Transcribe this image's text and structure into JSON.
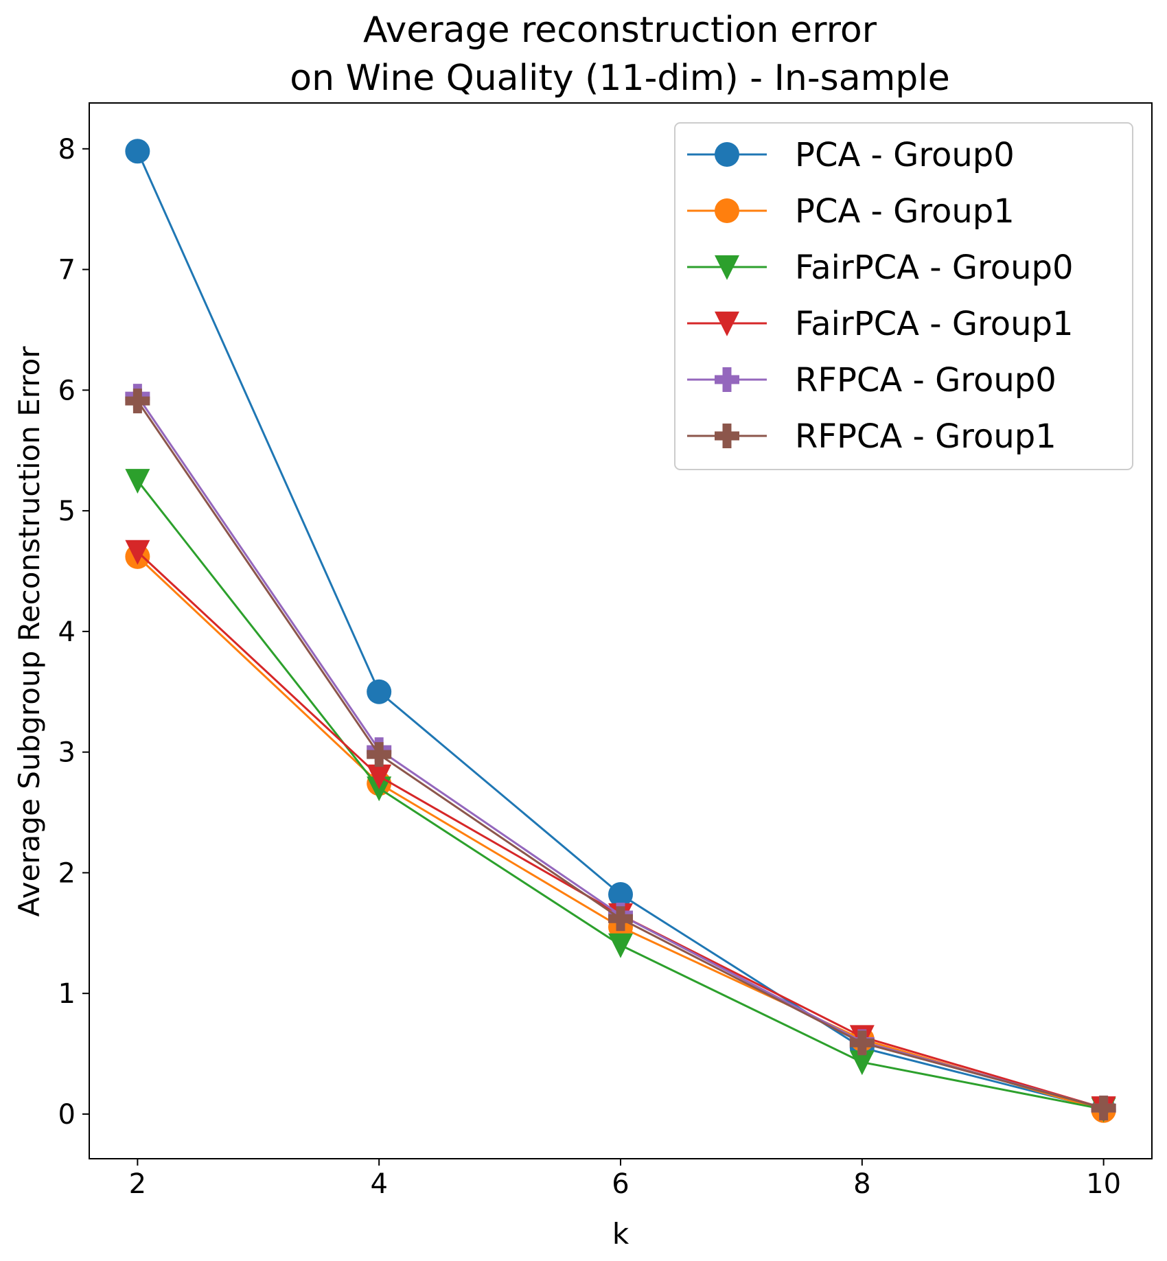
{
  "chart_data": {
    "type": "line",
    "title_lines": [
      "Average reconstruction error",
      "on Wine Quality (11-dim) - In-sample"
    ],
    "xlabel": "k",
    "ylabel": "Average Subgroup Reconstruction Error",
    "x": [
      2,
      4,
      6,
      8,
      10
    ],
    "xticks": [
      2,
      4,
      6,
      8,
      10
    ],
    "yticks": [
      0,
      1,
      2,
      3,
      4,
      5,
      6,
      7,
      8
    ],
    "xlim": [
      1.6,
      10.4
    ],
    "ylim": [
      -0.37,
      8.38
    ],
    "grid": false,
    "legend_position": "top-right",
    "series": [
      {
        "name": "PCA - Group0",
        "color": "#1f77b4",
        "marker": "circle",
        "values": [
          7.98,
          3.5,
          1.82,
          0.55,
          0.04
        ]
      },
      {
        "name": "PCA - Group1",
        "color": "#ff7f0e",
        "marker": "circle",
        "values": [
          4.62,
          2.74,
          1.55,
          0.62,
          0.03
        ]
      },
      {
        "name": "FairPCA - Group0",
        "color": "#2ca02c",
        "marker": "triangle-down",
        "values": [
          5.25,
          2.7,
          1.4,
          0.43,
          0.04
        ]
      },
      {
        "name": "FairPCA - Group1",
        "color": "#d62728",
        "marker": "triangle-down",
        "values": [
          4.66,
          2.8,
          1.65,
          0.64,
          0.05
        ]
      },
      {
        "name": "RFPCA - Group0",
        "color": "#9467bd",
        "marker": "plus",
        "values": [
          5.95,
          3.02,
          1.65,
          0.6,
          0.05
        ]
      },
      {
        "name": "RFPCA - Group1",
        "color": "#8c564b",
        "marker": "plus",
        "values": [
          5.91,
          2.98,
          1.62,
          0.59,
          0.05
        ]
      }
    ]
  }
}
